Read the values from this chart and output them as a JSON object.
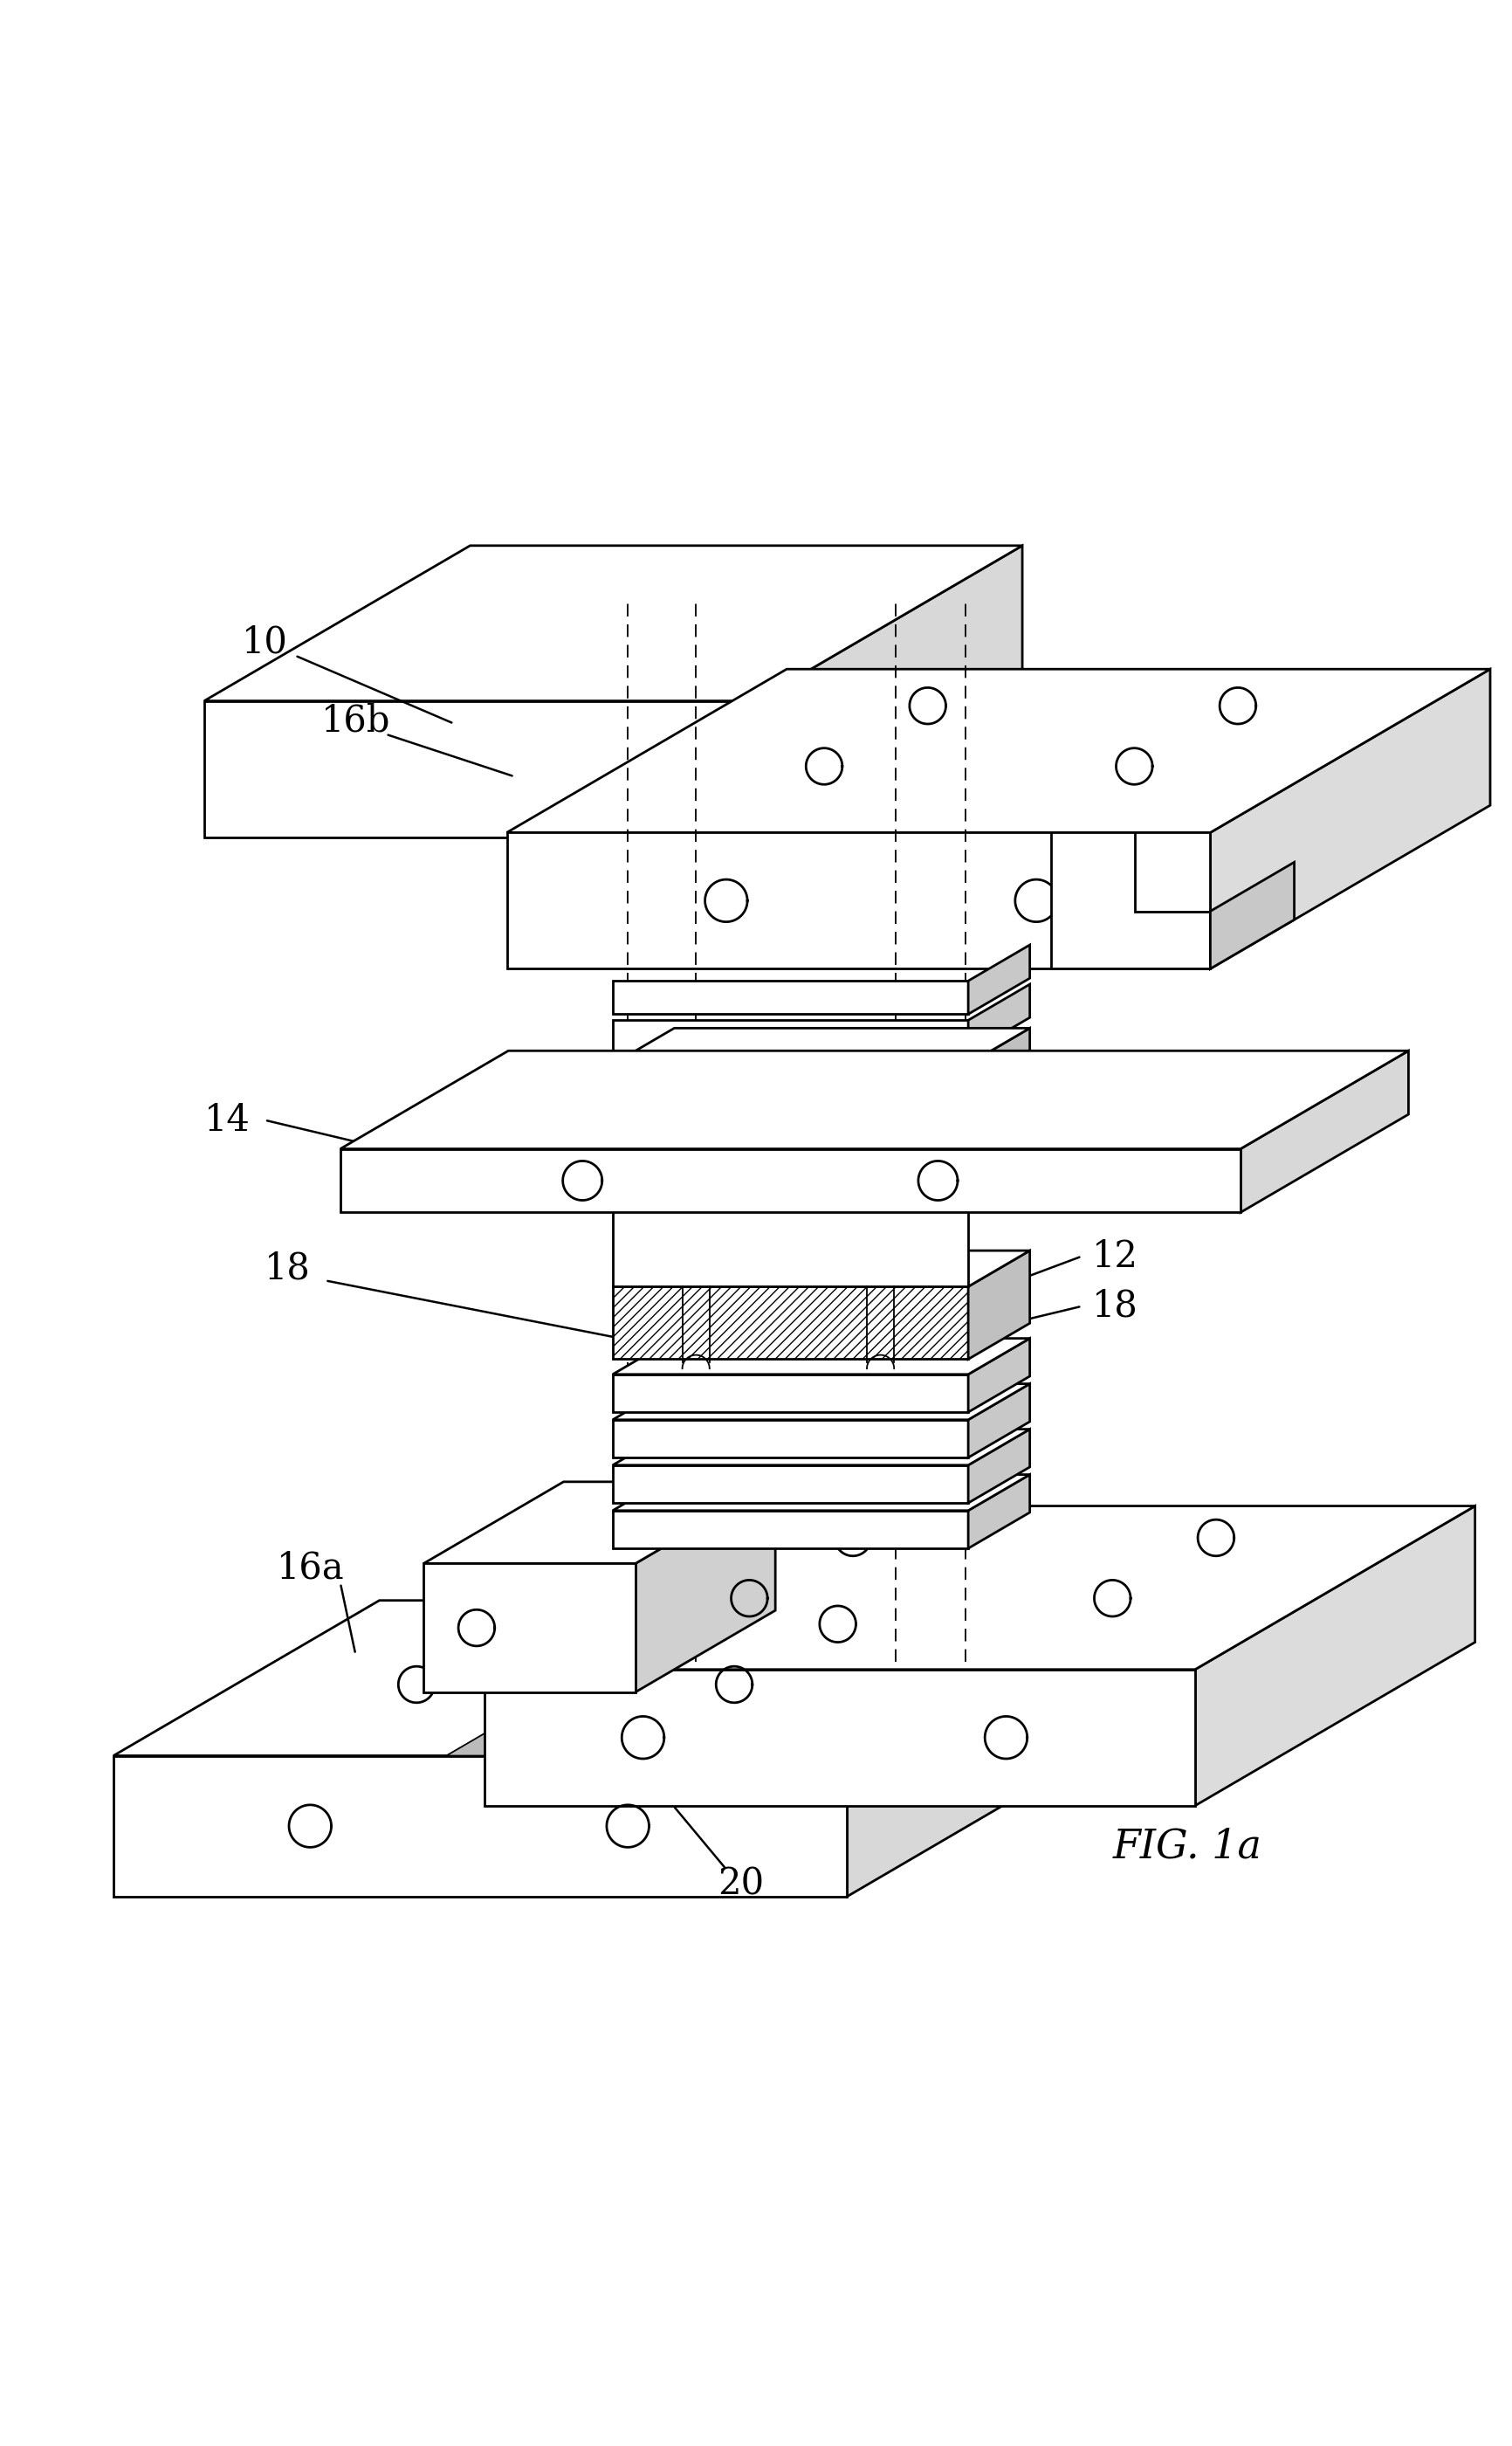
{
  "bg": "#ffffff",
  "lc": "#000000",
  "lw": 2.0,
  "lw_thin": 1.3,
  "fig_label": "FIG. 1a",
  "labels": [
    "10",
    "16b",
    "12",
    "12",
    "14",
    "18",
    "18",
    "16a",
    "20"
  ],
  "hole_r": 0.013
}
